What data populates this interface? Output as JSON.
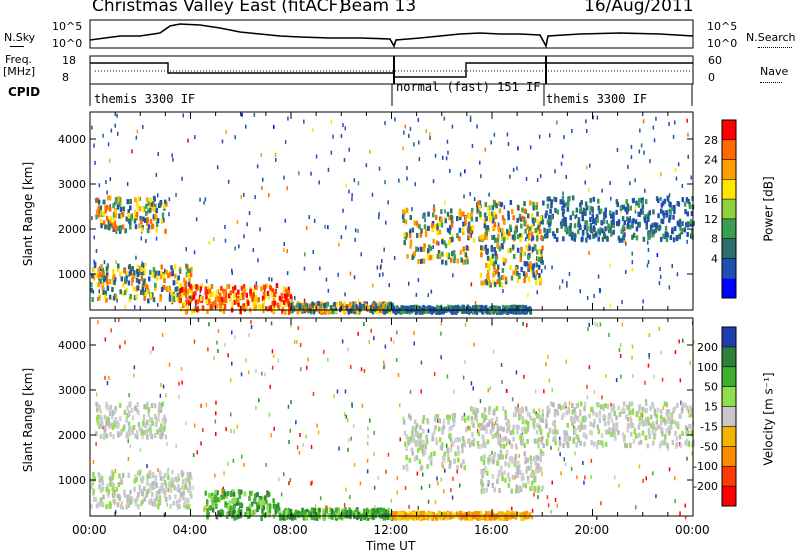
{
  "header": {
    "title": "Christmas Valley East (fitACF)",
    "beam": "Beam 13",
    "date": "16/Aug/2011"
  },
  "sky_panel": {
    "left_label": "N.Sky",
    "left_ticks": [
      "10^5",
      "10^0"
    ],
    "right_ticks": [
      "10^5",
      "10^0"
    ],
    "right_label": "N.Search"
  },
  "freq_panel": {
    "left_label_1": "Freq.",
    "left_label_2": "[MHz]",
    "left_ticks": [
      "18",
      "8"
    ],
    "right_ticks": [
      "60",
      "0"
    ],
    "right_label": "Nave"
  },
  "cpid": {
    "label": "CPID",
    "segments": [
      "themis 3300 IF",
      "normal (fast) 151 IF",
      "themis 3300 IF"
    ]
  },
  "x_axis": {
    "label": "Time UT",
    "ticks": [
      "00:00",
      "04:00",
      "08:00",
      "12:00",
      "16:00",
      "20:00",
      "00:00"
    ]
  },
  "chart_data": [
    {
      "type": "heatmap",
      "name": "power",
      "xlabel": "Time UT",
      "ylabel": "Slant Range [km]",
      "xlim": [
        0,
        24
      ],
      "ylim": [
        200,
        4600
      ],
      "yticks": [
        "1000",
        "2000",
        "3000",
        "4000"
      ],
      "colorbar_label": "Power [dB]",
      "colorbar_ticks": [
        "28",
        "24",
        "20",
        "16",
        "12",
        "8",
        "4"
      ],
      "colors": [
        "#ff0000",
        "#ff6a00",
        "#ff9e00",
        "#ffe800",
        "#8fd13f",
        "#3c9e50",
        "#2a6f6a",
        "#1f4fb0",
        "#0000ff"
      ],
      "features": [
        {
          "t": [
            0.2,
            3.0
          ],
          "range": [
            2000,
            2750
          ],
          "level": "mid"
        },
        {
          "t": [
            0.0,
            4.0
          ],
          "range": [
            450,
            1250
          ],
          "level": "mid"
        },
        {
          "t": [
            3.5,
            8.0
          ],
          "range": [
            200,
            800
          ],
          "level": "high"
        },
        {
          "t": [
            8.0,
            12.0
          ],
          "range": [
            200,
            400
          ],
          "level": "mid"
        },
        {
          "t": [
            12.0,
            17.5
          ],
          "range": [
            200,
            320
          ],
          "level": "low"
        },
        {
          "t": [
            12.4,
            15.0
          ],
          "range": [
            1300,
            2500
          ],
          "level": "mid"
        },
        {
          "t": [
            15.0,
            18.0
          ],
          "range": [
            1800,
            2650
          ],
          "level": "mid"
        },
        {
          "t": [
            15.5,
            18.0
          ],
          "range": [
            800,
            1700
          ],
          "level": "mid"
        },
        {
          "t": [
            18.0,
            24.0
          ],
          "range": [
            1800,
            2750
          ],
          "level": "low"
        }
      ]
    },
    {
      "type": "heatmap",
      "name": "velocity",
      "xlabel": "Time UT",
      "ylabel": "Slant Range [km]",
      "xlim": [
        0,
        24
      ],
      "ylim": [
        200,
        4600
      ],
      "yticks": [
        "1000",
        "2000",
        "3000",
        "4000"
      ],
      "colorbar_label": "Velocity [m s⁻¹]",
      "colorbar_ticks": [
        "200",
        "100",
        "50",
        "15",
        "-15",
        "-50",
        "-100",
        "-200"
      ],
      "colors": [
        "#1f3fb0",
        "#2e7f3a",
        "#3fae2f",
        "#8fe04a",
        "#c8c8c8",
        "#f3b400",
        "#ff8c00",
        "#ff3a00",
        "#ff0000"
      ],
      "features": [
        {
          "t": [
            0.2,
            3.0
          ],
          "range": [
            2000,
            2750
          ],
          "level": "grey"
        },
        {
          "t": [
            0.0,
            4.0
          ],
          "range": [
            450,
            1250
          ],
          "level": "grey"
        },
        {
          "t": [
            4.5,
            7.5
          ],
          "range": [
            200,
            800
          ],
          "level": "green"
        },
        {
          "t": [
            7.5,
            12.0
          ],
          "range": [
            200,
            400
          ],
          "level": "green"
        },
        {
          "t": [
            12.0,
            17.5
          ],
          "range": [
            200,
            320
          ],
          "level": "orange"
        },
        {
          "t": [
            12.4,
            15.0
          ],
          "range": [
            1300,
            2500
          ],
          "level": "grey"
        },
        {
          "t": [
            15.0,
            18.0
          ],
          "range": [
            1800,
            2650
          ],
          "level": "grey"
        },
        {
          "t": [
            15.5,
            18.0
          ],
          "range": [
            800,
            1700
          ],
          "level": "grey"
        },
        {
          "t": [
            18.0,
            24.0
          ],
          "range": [
            1800,
            2750
          ],
          "level": "grey"
        }
      ]
    }
  ]
}
